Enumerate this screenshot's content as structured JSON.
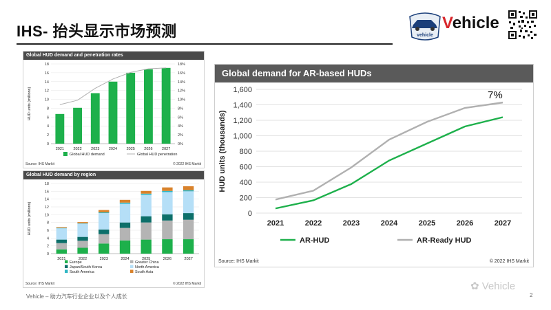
{
  "page": {
    "title": "IHS- 抬头显示市场预测",
    "footer": "Vehicle – 助力汽车行业企业以及个人成长",
    "page_number": "2",
    "watermark": "Vehicle",
    "brand": {
      "prefix": "V",
      "rest": "ehicle",
      "badge_text": "vehicle"
    }
  },
  "colors": {
    "green": "#1db04b",
    "grey_line": "#b0b0b0",
    "header_bg": "#4a4a4a"
  },
  "chart_data": [
    {
      "type": "bar",
      "title": "Global HUD demand and penetration rates",
      "categories": [
        "2021",
        "2022",
        "2023",
        "2024",
        "2025",
        "2026",
        "2027"
      ],
      "series": [
        {
          "name": "Global HUD demand",
          "axis": "left",
          "values": [
            6.7,
            8.1,
            11.4,
            14.0,
            16.0,
            16.8,
            17.1
          ]
        },
        {
          "name": "Global HUD penetration",
          "axis": "right",
          "type": "line",
          "values": [
            8.8,
            9.8,
            12.5,
            14.6,
            16.1,
            16.9,
            17.1
          ]
        }
      ],
      "ylabel": "HUD units (millions)",
      "ylim": [
        0,
        18
      ],
      "yticks": [
        "0",
        "2",
        "4",
        "6",
        "8",
        "10",
        "12",
        "14",
        "16",
        "18"
      ],
      "y2lim": [
        0,
        18
      ],
      "y2ticks": [
        "0%",
        "2%",
        "4%",
        "6%",
        "8%",
        "10%",
        "12%",
        "14%",
        "16%",
        "18%"
      ],
      "source": "Source: IHS Markit",
      "copyright": "© 2022 IHS Markit"
    },
    {
      "type": "bar",
      "stacked": true,
      "title": "Global HUD demand by region",
      "categories": [
        "2021",
        "2022",
        "2023",
        "2024",
        "2025",
        "2026",
        "2027"
      ],
      "series": [
        {
          "name": "Europe",
          "color": "#1db04b",
          "values": [
            1.1,
            1.5,
            2.6,
            3.4,
            3.6,
            3.7,
            3.7
          ]
        },
        {
          "name": "Greater China",
          "color": "#b4b4b4",
          "values": [
            1.6,
            1.8,
            2.4,
            3.2,
            4.4,
            4.8,
            5.0
          ]
        },
        {
          "name": "Japan/South Korea",
          "color": "#0c6f6a",
          "values": [
            0.9,
            1.0,
            1.2,
            1.4,
            1.6,
            1.6,
            1.7
          ]
        },
        {
          "name": "North America",
          "color": "#b5dff7",
          "values": [
            2.9,
            3.4,
            4.2,
            4.8,
            5.5,
            5.7,
            5.6
          ]
        },
        {
          "name": "South America",
          "color": "#2fb7c4",
          "values": [
            0.1,
            0.1,
            0.2,
            0.3,
            0.3,
            0.3,
            0.3
          ]
        },
        {
          "name": "South Asia",
          "color": "#d9822b",
          "values": [
            0.2,
            0.3,
            0.6,
            0.7,
            0.7,
            0.9,
            1.0
          ]
        }
      ],
      "ylabel": "HUD units (millions)",
      "ylim": [
        0,
        18
      ],
      "yticks": [
        "0",
        "2",
        "4",
        "6",
        "8",
        "10",
        "12",
        "14",
        "16",
        "18"
      ],
      "source": "Source: IHS Markit",
      "copyright": "© 2022 IHS Markit"
    },
    {
      "type": "line",
      "title": "Global demand for AR-based HUDs",
      "categories": [
        "2021",
        "2022",
        "2023",
        "2024",
        "2025",
        "2026",
        "2027"
      ],
      "series": [
        {
          "name": "AR-HUD",
          "color": "#1db04b",
          "values": [
            60,
            165,
            375,
            680,
            900,
            1120,
            1240
          ]
        },
        {
          "name": "AR-Ready HUD",
          "color": "#b0b0b0",
          "values": [
            175,
            290,
            590,
            950,
            1180,
            1360,
            1430
          ]
        }
      ],
      "ylabel": "HUD units (thousands)",
      "ylim": [
        0,
        1600
      ],
      "yticks": [
        "0",
        "200",
        "400",
        "600",
        "800",
        "1,000",
        "1,200",
        "1,400",
        "1,600"
      ],
      "annotation": "7%",
      "source": "Source: IHS Markit",
      "copyright": "© 2022 IHS Markit"
    }
  ]
}
